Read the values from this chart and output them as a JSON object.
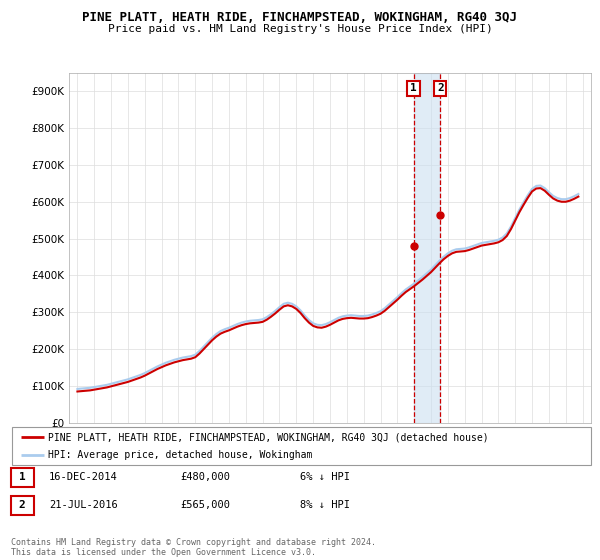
{
  "title": "PINE PLATT, HEATH RIDE, FINCHAMPSTEAD, WOKINGHAM, RG40 3QJ",
  "subtitle": "Price paid vs. HM Land Registry's House Price Index (HPI)",
  "ylabel_ticks": [
    "£900K",
    "£800K",
    "£700K",
    "£600K",
    "£500K",
    "£400K",
    "£300K",
    "£200K",
    "£100K",
    "£0"
  ],
  "ytick_vals": [
    900000,
    800000,
    700000,
    600000,
    500000,
    400000,
    300000,
    200000,
    100000,
    0
  ],
  "ylim": [
    0,
    950000
  ],
  "xlim_start": 1994.5,
  "xlim_end": 2025.5,
  "legend_line1": "PINE PLATT, HEATH RIDE, FINCHAMPSTEAD, WOKINGHAM, RG40 3QJ (detached house)",
  "legend_line2": "HPI: Average price, detached house, Wokingham",
  "sale1_date": "16-DEC-2014",
  "sale1_price": "£480,000",
  "sale1_pct": "6% ↓ HPI",
  "sale2_date": "21-JUL-2016",
  "sale2_price": "£565,000",
  "sale2_pct": "8% ↓ HPI",
  "footer": "Contains HM Land Registry data © Crown copyright and database right 2024.\nThis data is licensed under the Open Government Licence v3.0.",
  "hpi_color": "#aaccee",
  "price_color": "#cc0000",
  "sale_marker_color": "#cc0000",
  "vline_color": "#cc0000",
  "shade_color": "#cce0f0",
  "sale1_x": 2014.96,
  "sale2_x": 2016.55,
  "sale1_y": 480000,
  "sale2_y": 565000,
  "hpi_data_x": [
    1995.0,
    1995.25,
    1995.5,
    1995.75,
    1996.0,
    1996.25,
    1996.5,
    1996.75,
    1997.0,
    1997.25,
    1997.5,
    1997.75,
    1998.0,
    1998.25,
    1998.5,
    1998.75,
    1999.0,
    1999.25,
    1999.5,
    1999.75,
    2000.0,
    2000.25,
    2000.5,
    2000.75,
    2001.0,
    2001.25,
    2001.5,
    2001.75,
    2002.0,
    2002.25,
    2002.5,
    2002.75,
    2003.0,
    2003.25,
    2003.5,
    2003.75,
    2004.0,
    2004.25,
    2004.5,
    2004.75,
    2005.0,
    2005.25,
    2005.5,
    2005.75,
    2006.0,
    2006.25,
    2006.5,
    2006.75,
    2007.0,
    2007.25,
    2007.5,
    2007.75,
    2008.0,
    2008.25,
    2008.5,
    2008.75,
    2009.0,
    2009.25,
    2009.5,
    2009.75,
    2010.0,
    2010.25,
    2010.5,
    2010.75,
    2011.0,
    2011.25,
    2011.5,
    2011.75,
    2012.0,
    2012.25,
    2012.5,
    2012.75,
    2013.0,
    2013.25,
    2013.5,
    2013.75,
    2014.0,
    2014.25,
    2014.5,
    2014.75,
    2015.0,
    2015.25,
    2015.5,
    2015.75,
    2016.0,
    2016.25,
    2016.5,
    2016.75,
    2017.0,
    2017.25,
    2017.5,
    2017.75,
    2018.0,
    2018.25,
    2018.5,
    2018.75,
    2019.0,
    2019.25,
    2019.5,
    2019.75,
    2020.0,
    2020.25,
    2020.5,
    2020.75,
    2021.0,
    2021.25,
    2021.5,
    2021.75,
    2022.0,
    2022.25,
    2022.5,
    2022.75,
    2023.0,
    2023.25,
    2023.5,
    2023.75,
    2024.0,
    2024.25,
    2024.5,
    2024.75
  ],
  "hpi_data_y": [
    92000,
    93000,
    94000,
    95000,
    97000,
    99000,
    101000,
    103000,
    106000,
    109000,
    112000,
    115000,
    118000,
    122000,
    126000,
    130000,
    135000,
    141000,
    147000,
    153000,
    158000,
    163000,
    167000,
    171000,
    174000,
    177000,
    179000,
    181000,
    185000,
    195000,
    207000,
    219000,
    231000,
    241000,
    249000,
    254000,
    258000,
    263000,
    268000,
    272000,
    275000,
    277000,
    278000,
    279000,
    281000,
    287000,
    295000,
    304000,
    314000,
    323000,
    326000,
    323000,
    316000,
    305000,
    291000,
    279000,
    270000,
    266000,
    265000,
    268000,
    273000,
    279000,
    285000,
    289000,
    291000,
    292000,
    291000,
    290000,
    290000,
    291000,
    294000,
    298000,
    303000,
    311000,
    321000,
    331000,
    341000,
    352000,
    362000,
    370000,
    378000,
    387000,
    396000,
    406000,
    416000,
    428000,
    440000,
    451000,
    460000,
    467000,
    471000,
    472000,
    473000,
    476000,
    480000,
    484000,
    488000,
    490000,
    492000,
    494000,
    497000,
    503000,
    514000,
    533000,
    556000,
    579000,
    599000,
    618000,
    635000,
    643000,
    644000,
    637000,
    626000,
    616000,
    610000,
    607000,
    607000,
    610000,
    615000,
    621000
  ],
  "price_data_x": [
    1995.0,
    1995.25,
    1995.5,
    1995.75,
    1996.0,
    1996.25,
    1996.5,
    1996.75,
    1997.0,
    1997.25,
    1997.5,
    1997.75,
    1998.0,
    1998.25,
    1998.5,
    1998.75,
    1999.0,
    1999.25,
    1999.5,
    1999.75,
    2000.0,
    2000.25,
    2000.5,
    2000.75,
    2001.0,
    2001.25,
    2001.5,
    2001.75,
    2002.0,
    2002.25,
    2002.5,
    2002.75,
    2003.0,
    2003.25,
    2003.5,
    2003.75,
    2004.0,
    2004.25,
    2004.5,
    2004.75,
    2005.0,
    2005.25,
    2005.5,
    2005.75,
    2006.0,
    2006.25,
    2006.5,
    2006.75,
    2007.0,
    2007.25,
    2007.5,
    2007.75,
    2008.0,
    2008.25,
    2008.5,
    2008.75,
    2009.0,
    2009.25,
    2009.5,
    2009.75,
    2010.0,
    2010.25,
    2010.5,
    2010.75,
    2011.0,
    2011.25,
    2011.5,
    2011.75,
    2012.0,
    2012.25,
    2012.5,
    2012.75,
    2013.0,
    2013.25,
    2013.5,
    2013.75,
    2014.0,
    2014.25,
    2014.5,
    2014.75,
    2015.0,
    2015.25,
    2015.5,
    2015.75,
    2016.0,
    2016.25,
    2016.5,
    2016.75,
    2017.0,
    2017.25,
    2017.5,
    2017.75,
    2018.0,
    2018.25,
    2018.5,
    2018.75,
    2019.0,
    2019.25,
    2019.5,
    2019.75,
    2020.0,
    2020.25,
    2020.5,
    2020.75,
    2021.0,
    2021.25,
    2021.5,
    2021.75,
    2022.0,
    2022.25,
    2022.5,
    2022.75,
    2023.0,
    2023.25,
    2023.5,
    2023.75,
    2024.0,
    2024.25,
    2024.5,
    2024.75
  ],
  "price_data_y": [
    85000,
    86000,
    87000,
    88000,
    90000,
    92000,
    94000,
    96000,
    99000,
    102000,
    105000,
    108000,
    111000,
    115000,
    119000,
    123000,
    128000,
    134000,
    140000,
    146000,
    151000,
    156000,
    160000,
    164000,
    167000,
    170000,
    172000,
    174000,
    178000,
    188000,
    200000,
    212000,
    224000,
    234000,
    242000,
    247000,
    251000,
    256000,
    261000,
    265000,
    268000,
    270000,
    271000,
    272000,
    274000,
    280000,
    288000,
    297000,
    307000,
    316000,
    319000,
    316000,
    309000,
    298000,
    284000,
    272000,
    263000,
    259000,
    258000,
    261000,
    266000,
    272000,
    278000,
    282000,
    284000,
    285000,
    284000,
    283000,
    283000,
    284000,
    287000,
    291000,
    296000,
    304000,
    314000,
    324000,
    334000,
    345000,
    355000,
    363000,
    371000,
    380000,
    389000,
    399000,
    409000,
    421000,
    433000,
    444000,
    453000,
    460000,
    464000,
    465000,
    466000,
    469000,
    473000,
    477000,
    481000,
    483000,
    485000,
    487000,
    490000,
    496000,
    507000,
    526000,
    549000,
    572000,
    592000,
    611000,
    628000,
    636000,
    637000,
    630000,
    619000,
    609000,
    603000,
    600000,
    600000,
    603000,
    608000,
    614000
  ]
}
